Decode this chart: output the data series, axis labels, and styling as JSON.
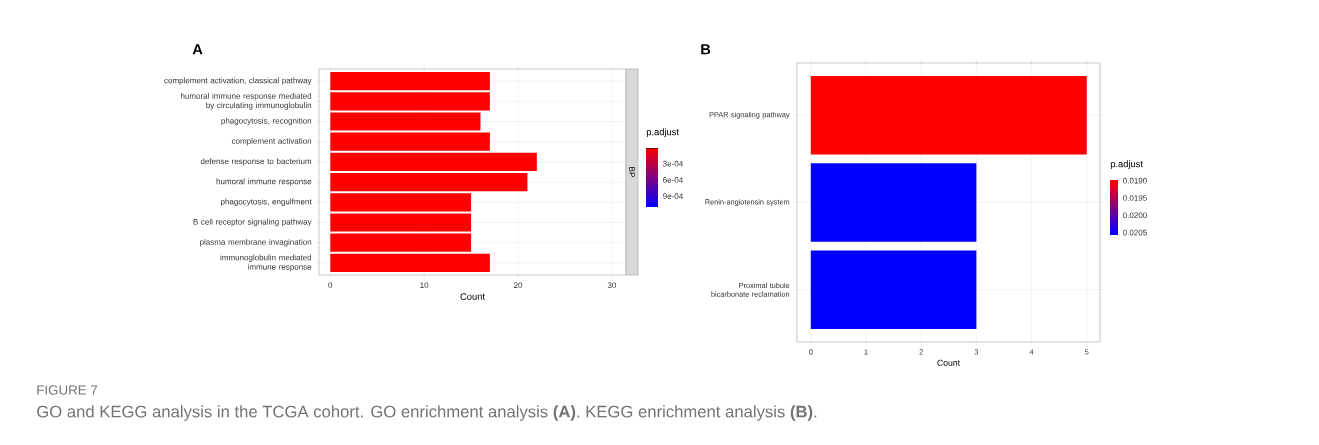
{
  "chart_data": [
    {
      "type": "bar",
      "title": "A",
      "orientation": "horizontal",
      "xlabel": "Count",
      "categories": [
        "complement activation, classical pathway",
        "humoral immune response mediated by circulating immunoglobulin",
        "phagocytosis, recognition",
        "complement activation",
        "defense response to bacterium",
        "humoral immune response",
        "phagocytosis, engulfment",
        "B cell receptor signaling pathway",
        "plasma membrane invagination",
        "immunoglobulin mediated immune response"
      ],
      "values": [
        17,
        17,
        16,
        17,
        22,
        21,
        15,
        15,
        15,
        17
      ],
      "colors": [
        "#ff0000",
        "#ff0000",
        "#ff0000",
        "#ff0000",
        "#ff0000",
        "#ff0000",
        "#ff0000",
        "#ff0000",
        "#ff0000",
        "#ff0000"
      ],
      "xlim": [
        -1.2,
        31.5
      ],
      "xticks": [
        0,
        10,
        20,
        30
      ],
      "grid": true,
      "clabel": "p.adjust",
      "clim": [
        1e-05,
        0.0011
      ],
      "cticks": [
        {
          "value": 0.0003,
          "label": "3e-04"
        },
        {
          "value": 0.0006,
          "label": "6e-04"
        },
        {
          "value": 0.0009,
          "label": "9e-04"
        }
      ],
      "annotations": [
        "BP",
        "FIGURE 7",
        "GO and KEGG analysis in the TCGA cohort. GO enrichment analysis **(A)**. KEGG enrichment analysis **(B)**."
      ]
    },
    {
      "type": "bar",
      "title": "B",
      "orientation": "horizontal",
      "xlabel": "Count",
      "categories": [
        "PPAR signaling pathway",
        "Renin-angiotensin system",
        "Proximal tubule bicarbonate reclamation"
      ],
      "values": [
        5,
        3,
        3
      ],
      "colors": [
        "#ff0000",
        "#0000ff",
        "#0000ff"
      ],
      "xlim": [
        -0.25,
        5.24
      ],
      "xticks": [
        0,
        1,
        2,
        3,
        4,
        5
      ],
      "grid": true,
      "clabel": "p.adjust",
      "clim": [
        0.01898,
        0.02057
      ],
      "cticks": [
        {
          "value": 0.019,
          "label": "0.0190"
        },
        {
          "value": 0.0195,
          "label": "0.0195"
        },
        {
          "value": 0.02,
          "label": "0.0200"
        },
        {
          "value": 0.0205,
          "label": "0.0205"
        }
      ]
    }
  ]
}
